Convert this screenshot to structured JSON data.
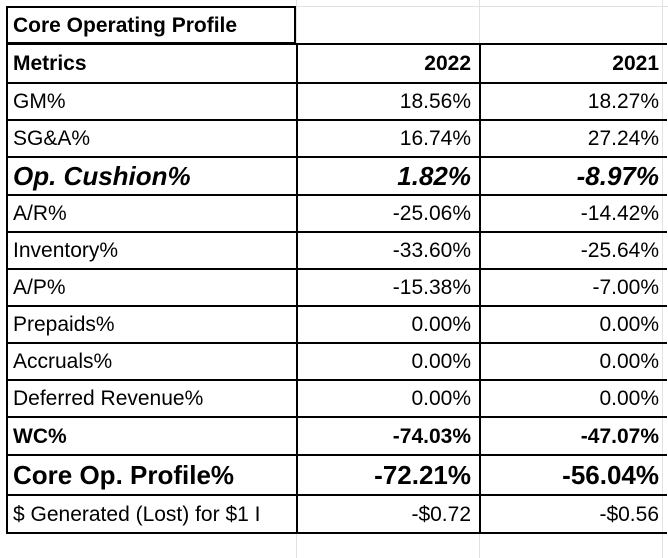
{
  "title": "Core Operating Profile",
  "header": {
    "label": "Metrics",
    "col1": "2022",
    "col2": "2021"
  },
  "rows": [
    {
      "label": "GM%",
      "v2022": "18.56%",
      "v2021": "18.27%"
    },
    {
      "label": "SG&A%",
      "v2022": "16.74%",
      "v2021": "27.24%"
    },
    {
      "label": "Op. Cushion%",
      "v2022": "1.82%",
      "v2021": "-8.97%"
    },
    {
      "label": "A/R%",
      "v2022": "-25.06%",
      "v2021": "-14.42%"
    },
    {
      "label": "Inventory%",
      "v2022": "-33.60%",
      "v2021": "-25.64%"
    },
    {
      "label": "A/P%",
      "v2022": "-15.38%",
      "v2021": "-7.00%"
    },
    {
      "label": "Prepaids%",
      "v2022": "0.00%",
      "v2021": "0.00%"
    },
    {
      "label": "Accruals%",
      "v2022": "0.00%",
      "v2021": "0.00%"
    },
    {
      "label": "Deferred Revenue%",
      "v2022": "0.00%",
      "v2021": "0.00%"
    },
    {
      "label": "WC%",
      "v2022": "-74.03%",
      "v2021": "-47.07%"
    },
    {
      "label": "Core Op. Profile%",
      "v2022": "-72.21%",
      "v2021": "-56.04%"
    },
    {
      "label": "$ Generated (Lost) for $1 I",
      "v2022": "-$0.72",
      "v2021": "-$0.56"
    }
  ]
}
